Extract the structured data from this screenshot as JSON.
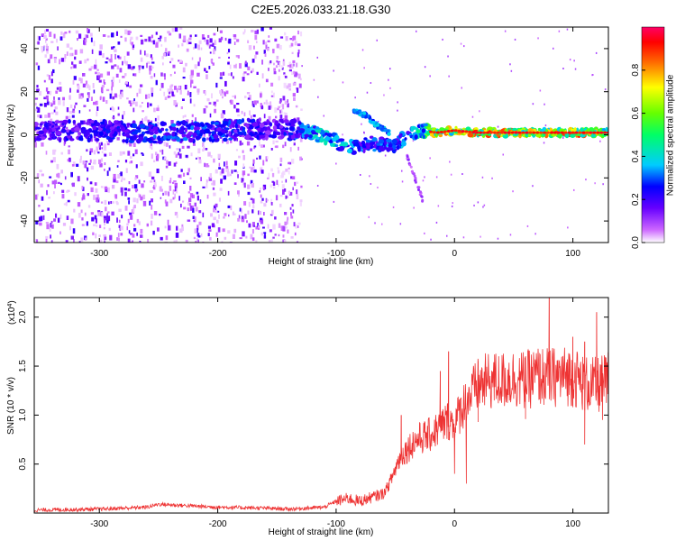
{
  "title": "C2E5.2026.033.21.18.G30",
  "chart_data": [
    {
      "type": "heatmap",
      "name": "spectrogram",
      "xlabel": "Height of straight line (km)",
      "ylabel": "Frequency (Hz)",
      "xlim": [
        -355,
        130
      ],
      "ylim": [
        -50,
        50
      ],
      "xticks": [
        -300,
        -200,
        -100,
        0,
        100
      ],
      "xtick_labels": [
        "-300",
        "-200",
        "-100",
        "0",
        "100"
      ],
      "yticks": [
        -40,
        -20,
        0,
        20,
        40
      ],
      "ytick_labels": [
        "-40",
        "-20",
        "0",
        "20",
        "40"
      ],
      "colorbar": {
        "label": "Normalized spectral amplitude",
        "range": [
          0,
          1
        ],
        "ticks": [
          0.0,
          0.2,
          0.4,
          0.6,
          0.8
        ],
        "tick_labels": [
          "0.0",
          "0.2",
          "0.4",
          "0.6",
          "0.8"
        ],
        "colors": [
          "#ffffff",
          "#cc66ff",
          "#6600ff",
          "#0000ff",
          "#00ccff",
          "#00ff66",
          "#66ff00",
          "#ffff00",
          "#ff6600",
          "#ff0000",
          "#ff0066"
        ]
      },
      "noise_region_x": [
        -355,
        -130
      ],
      "main_band": [
        {
          "x": -350,
          "f": 2,
          "amp": 0.22
        },
        {
          "x": -300,
          "f": 2,
          "amp": 0.25
        },
        {
          "x": -250,
          "f": 1,
          "amp": 0.3
        },
        {
          "x": -200,
          "f": 2,
          "amp": 0.3
        },
        {
          "x": -150,
          "f": 3,
          "amp": 0.22
        },
        {
          "x": -120,
          "f": 1,
          "amp": 0.4
        },
        {
          "x": -100,
          "f": -3,
          "amp": 0.45
        },
        {
          "x": -90,
          "f": -6,
          "amp": 0.35
        },
        {
          "x": -70,
          "f": -4,
          "amp": 0.3
        },
        {
          "x": -50,
          "f": -5,
          "amp": 0.35
        },
        {
          "x": -40,
          "f": 0,
          "amp": 0.35
        },
        {
          "x": -30,
          "f": 2,
          "amp": 0.45
        },
        {
          "x": -15,
          "f": 1,
          "amp": 0.8
        },
        {
          "x": 0,
          "f": 2,
          "amp": 0.75
        },
        {
          "x": 20,
          "f": 1,
          "amp": 0.85
        },
        {
          "x": 50,
          "f": 1,
          "amp": 0.8
        },
        {
          "x": 80,
          "f": 1,
          "amp": 0.78
        },
        {
          "x": 100,
          "f": 1,
          "amp": 0.85
        },
        {
          "x": 130,
          "f": 1,
          "amp": 0.7
        }
      ],
      "upper_branch": [
        {
          "x": -85,
          "f": 11
        },
        {
          "x": -75,
          "f": 9
        },
        {
          "x": -65,
          "f": 4
        },
        {
          "x": -55,
          "f": 1
        }
      ],
      "tail": [
        {
          "x": -40,
          "f": -10
        },
        {
          "x": -35,
          "f": -18
        },
        {
          "x": -30,
          "f": -25
        },
        {
          "x": -26,
          "f": -32
        }
      ]
    },
    {
      "type": "line",
      "name": "snr",
      "xlabel": "Height of straight line (km)",
      "ylabel": "SNR (10 * v/v)",
      "multiplier_label": "(x10",
      "multiplier_exp": "4",
      "multiplier_close": ")",
      "xlim": [
        -355,
        130
      ],
      "ylim": [
        0,
        2.2
      ],
      "xticks": [
        -300,
        -200,
        -100,
        0,
        100
      ],
      "xtick_labels": [
        "-300",
        "-200",
        "-100",
        "0",
        "100"
      ],
      "yticks": [
        0.5,
        1.0,
        1.5,
        2.0
      ],
      "ytick_labels": [
        "0.5",
        "1.0",
        "1.5",
        "2.0"
      ],
      "color": "#ee3333",
      "series": [
        {
          "name": "SNR",
          "x": [
            -355,
            -300,
            -260,
            -250,
            -200,
            -160,
            -140,
            -110,
            -100,
            -90,
            -80,
            -70,
            -60,
            -55,
            -50,
            -45,
            -40,
            -35,
            -30,
            -25,
            -20,
            -15,
            -10,
            -5,
            0,
            5,
            10,
            20,
            30,
            40,
            50,
            60,
            70,
            80,
            90,
            100,
            110,
            120,
            130
          ],
          "y": [
            0.03,
            0.04,
            0.06,
            0.09,
            0.06,
            0.05,
            0.04,
            0.06,
            0.12,
            0.15,
            0.12,
            0.16,
            0.2,
            0.3,
            0.45,
            0.6,
            0.65,
            0.72,
            0.76,
            0.78,
            0.8,
            0.85,
            0.9,
            0.95,
            0.9,
            1.05,
            1.15,
            1.3,
            1.35,
            1.35,
            1.38,
            1.35,
            1.4,
            1.38,
            1.4,
            1.4,
            1.32,
            1.3,
            1.35
          ]
        }
      ],
      "peaks": [
        {
          "x": -5,
          "y": 1.65
        },
        {
          "x": -12,
          "y": 1.45
        },
        {
          "x": -45,
          "y": 1.0
        },
        {
          "x": 80,
          "y": 2.2
        },
        {
          "x": 120,
          "y": 2.05
        },
        {
          "x": 110,
          "y": 1.75
        },
        {
          "x": 60,
          "y": 1.6
        },
        {
          "x": 20,
          "y": 1.55
        },
        {
          "x": 100,
          "y": 1.8
        }
      ],
      "dips": [
        {
          "x": 10,
          "y": 0.3
        },
        {
          "x": 110,
          "y": 0.7
        },
        {
          "x": 125,
          "y": 0.95
        },
        {
          "x": 0,
          "y": 0.4
        }
      ]
    }
  ]
}
